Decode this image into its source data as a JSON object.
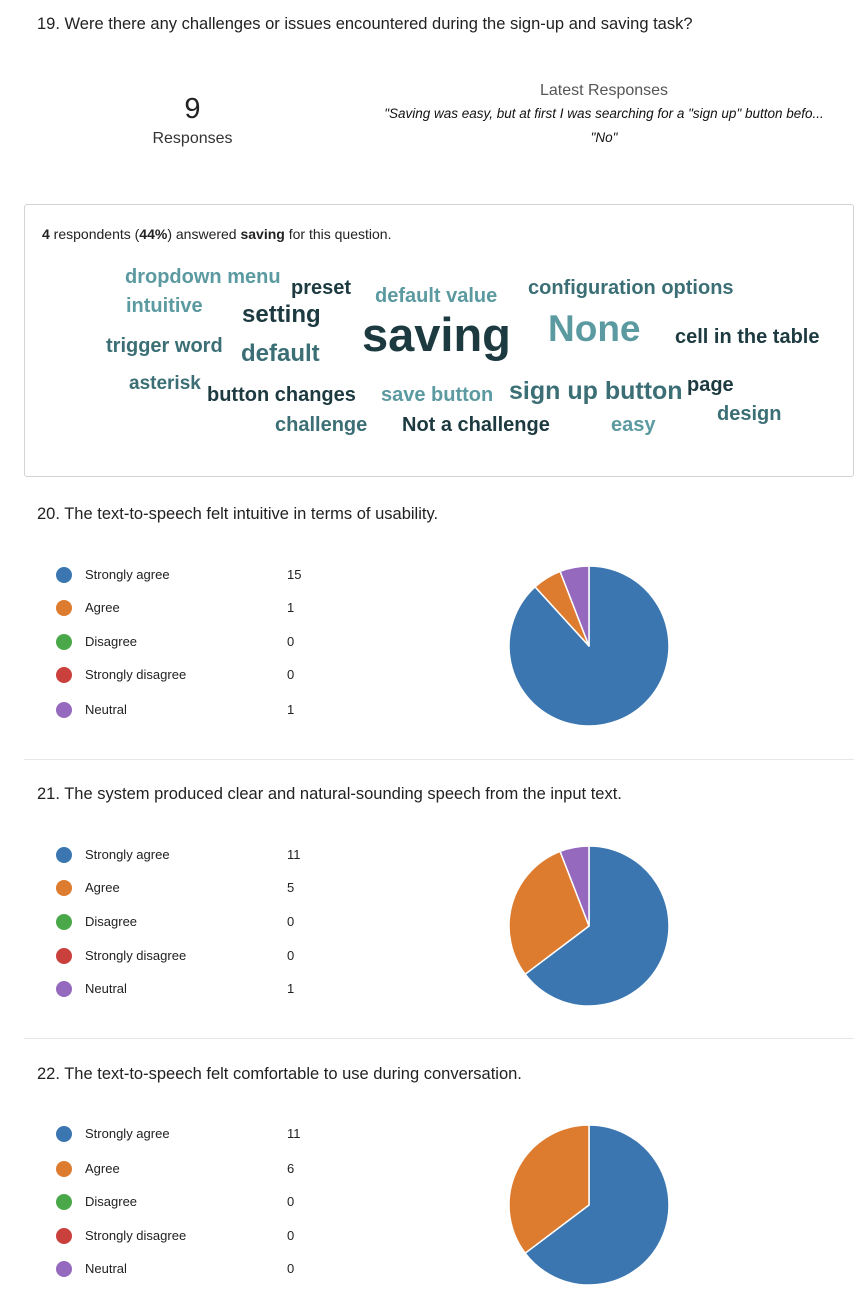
{
  "q19": {
    "title": "19.  Were there any challenges or issues encountered during the sign-up and saving task?",
    "responses_count": "9",
    "responses_label": "Responses",
    "latest_header": "Latest Responses",
    "latest": [
      "\"Saving was easy, but at first I was searching for a \"sign up\" button befo...",
      "\"No\""
    ],
    "summary": {
      "count": "4",
      "part1": " respondents (",
      "percent": "44%",
      "part2": ") answered ",
      "keyword": "saving",
      "part3": " for this question."
    },
    "words": [
      {
        "text": "dropdown menu",
        "color": "#5b9aa0"
      },
      {
        "text": "preset",
        "color": "#1c3a40"
      },
      {
        "text": "intuitive",
        "color": "#5b9aa0"
      },
      {
        "text": "setting",
        "color": "#1c3a40"
      },
      {
        "text": "default value",
        "color": "#5b9aa0"
      },
      {
        "text": "configuration options",
        "color": "#3b6f75"
      },
      {
        "text": "trigger word",
        "color": "#3b6f75"
      },
      {
        "text": "default",
        "color": "#3b6f75"
      },
      {
        "text": "saving",
        "color": "#1c3a40"
      },
      {
        "text": "None",
        "color": "#5b9aa0"
      },
      {
        "text": "cell in the table",
        "color": "#1c3a40"
      },
      {
        "text": "asterisk",
        "color": "#3b6f75"
      },
      {
        "text": "button changes",
        "color": "#1c3a40"
      },
      {
        "text": "save button",
        "color": "#5b9aa0"
      },
      {
        "text": "sign up button",
        "color": "#3b6f75"
      },
      {
        "text": "page",
        "color": "#1c3a40"
      },
      {
        "text": "design",
        "color": "#3b6f75"
      },
      {
        "text": "challenge",
        "color": "#3b6f75"
      },
      {
        "text": "Not a challenge",
        "color": "#1c3a40"
      },
      {
        "text": "easy",
        "color": "#5b9aa0"
      }
    ]
  },
  "legend_labels": [
    "Strongly agree",
    "Agree",
    "Disagree",
    "Strongly disagree",
    "Neutral"
  ],
  "colors": [
    "#3b76b0",
    "#dd7b2f",
    "#4aa84a",
    "#c9403c",
    "#9569be"
  ],
  "q20": {
    "title": "20.  The text-to-speech felt intuitive in terms of usability.",
    "counts": [
      "15",
      "1",
      "0",
      "0",
      "1"
    ]
  },
  "q21": {
    "title": "21.  The system produced clear and natural-sounding speech from the input text.",
    "counts": [
      "11",
      "5",
      "0",
      "0",
      "1"
    ]
  },
  "q22": {
    "title": "22.  The text-to-speech felt comfortable to use during conversation.",
    "counts": [
      "11",
      "6",
      "0",
      "0",
      "0"
    ]
  },
  "chart_data": [
    {
      "type": "pie",
      "categories": [
        "Strongly agree",
        "Agree",
        "Disagree",
        "Strongly disagree",
        "Neutral"
      ],
      "values": [
        15,
        1,
        0,
        0,
        1
      ],
      "title": "20.  The text-to-speech felt intuitive in terms of usability."
    },
    {
      "type": "pie",
      "categories": [
        "Strongly agree",
        "Agree",
        "Disagree",
        "Strongly disagree",
        "Neutral"
      ],
      "values": [
        11,
        5,
        0,
        0,
        1
      ],
      "title": "21.  The system produced clear and natural-sounding speech from the input text."
    },
    {
      "type": "pie",
      "categories": [
        "Strongly agree",
        "Agree",
        "Disagree",
        "Strongly disagree",
        "Neutral"
      ],
      "values": [
        11,
        6,
        0,
        0,
        0
      ],
      "title": "22.  The text-to-speech felt comfortable to use during conversation."
    }
  ]
}
